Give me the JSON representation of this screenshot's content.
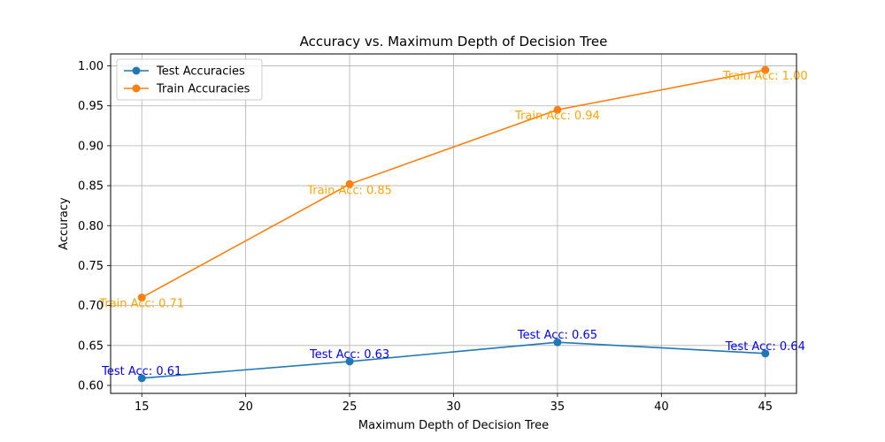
{
  "chart_data": {
    "type": "line",
    "title": "Accuracy vs. Maximum Depth of Decision Tree",
    "xlabel": "Maximum Depth of Decision Tree",
    "ylabel": "Accuracy",
    "x": [
      15,
      25,
      35,
      45
    ],
    "xlim": [
      13.5,
      46.5
    ],
    "ylim": [
      0.59,
      1.015
    ],
    "xticks": [
      15,
      20,
      25,
      30,
      35,
      40,
      45
    ],
    "xtick_labels": [
      "15",
      "20",
      "25",
      "30",
      "35",
      "40",
      "45"
    ],
    "yticks": [
      0.6,
      0.65,
      0.7,
      0.75,
      0.8,
      0.85,
      0.9,
      0.95,
      1.0
    ],
    "ytick_labels": [
      "0.60",
      "0.65",
      "0.70",
      "0.75",
      "0.80",
      "0.85",
      "0.90",
      "0.95",
      "1.00"
    ],
    "grid": true,
    "legend_position": "top-left",
    "series": [
      {
        "name": "Test Accuracies",
        "color": "#1f77b4",
        "label_color": "#0000ff",
        "values": [
          0.609,
          0.63,
          0.654,
          0.64
        ],
        "labels": [
          "Test Acc: 0.61",
          "Test Acc: 0.63",
          "Test Acc: 0.65",
          "Test Acc: 0.64"
        ],
        "label_placement": "above"
      },
      {
        "name": "Train Accuracies",
        "color": "#ff7f0e",
        "label_color": "#ffa500",
        "values": [
          0.71,
          0.852,
          0.945,
          0.995
        ],
        "labels": [
          "Train Acc: 0.71",
          "Train Acc: 0.85",
          "Train Acc: 0.94",
          "Train Acc: 1.00"
        ],
        "label_placement": "below"
      }
    ]
  }
}
